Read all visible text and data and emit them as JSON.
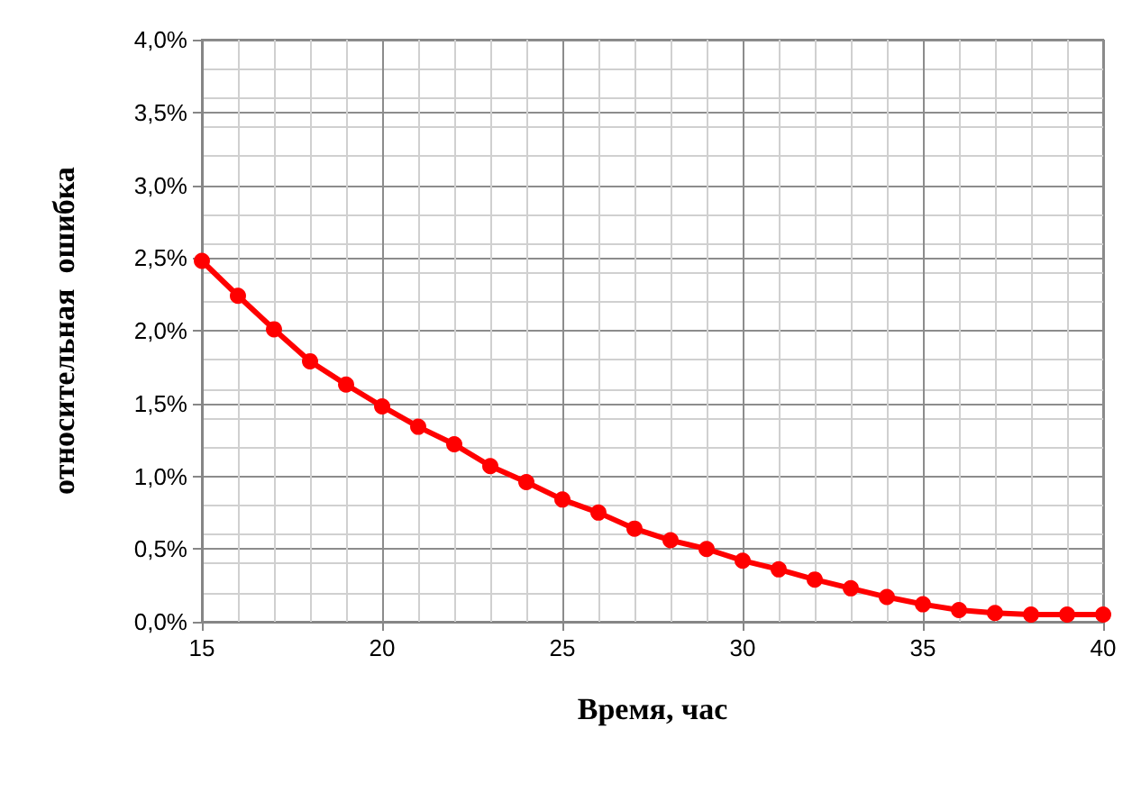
{
  "chart_data": {
    "type": "line",
    "xlabel": "Время, час",
    "ylabel": "относительная  ошибка",
    "x": [
      15,
      16,
      17,
      18,
      19,
      20,
      21,
      22,
      23,
      24,
      25,
      26,
      27,
      28,
      29,
      30,
      31,
      32,
      33,
      34,
      35,
      36,
      37,
      38,
      39,
      40
    ],
    "series": [
      {
        "color": "#ff0000",
        "values": [
          2.48,
          2.24,
          2.01,
          1.79,
          1.63,
          1.48,
          1.34,
          1.22,
          1.07,
          0.96,
          0.84,
          0.75,
          0.64,
          0.56,
          0.5,
          0.42,
          0.36,
          0.29,
          0.23,
          0.17,
          0.12,
          0.08,
          0.06,
          0.05,
          0.05,
          0.05
        ]
      }
    ],
    "xlim": [
      15,
      40
    ],
    "xticks": [
      15,
      20,
      25,
      30,
      35,
      40
    ],
    "ylim": [
      0,
      4
    ],
    "yticks": [
      {
        "value": 0,
        "label": "0,0%"
      },
      {
        "value": 0.5,
        "label": "0,5%"
      },
      {
        "value": 1,
        "label": "1,0%"
      },
      {
        "value": 1.5,
        "label": "1,5%"
      },
      {
        "value": 2,
        "label": "2,0%"
      },
      {
        "value": 2.5,
        "label": "2,5%"
      },
      {
        "value": 3,
        "label": "3,0%"
      },
      {
        "value": 3.5,
        "label": "3,5%"
      },
      {
        "value": 4,
        "label": "4,0%"
      }
    ],
    "grid": true,
    "marker": "circle",
    "line_style": "solid"
  }
}
